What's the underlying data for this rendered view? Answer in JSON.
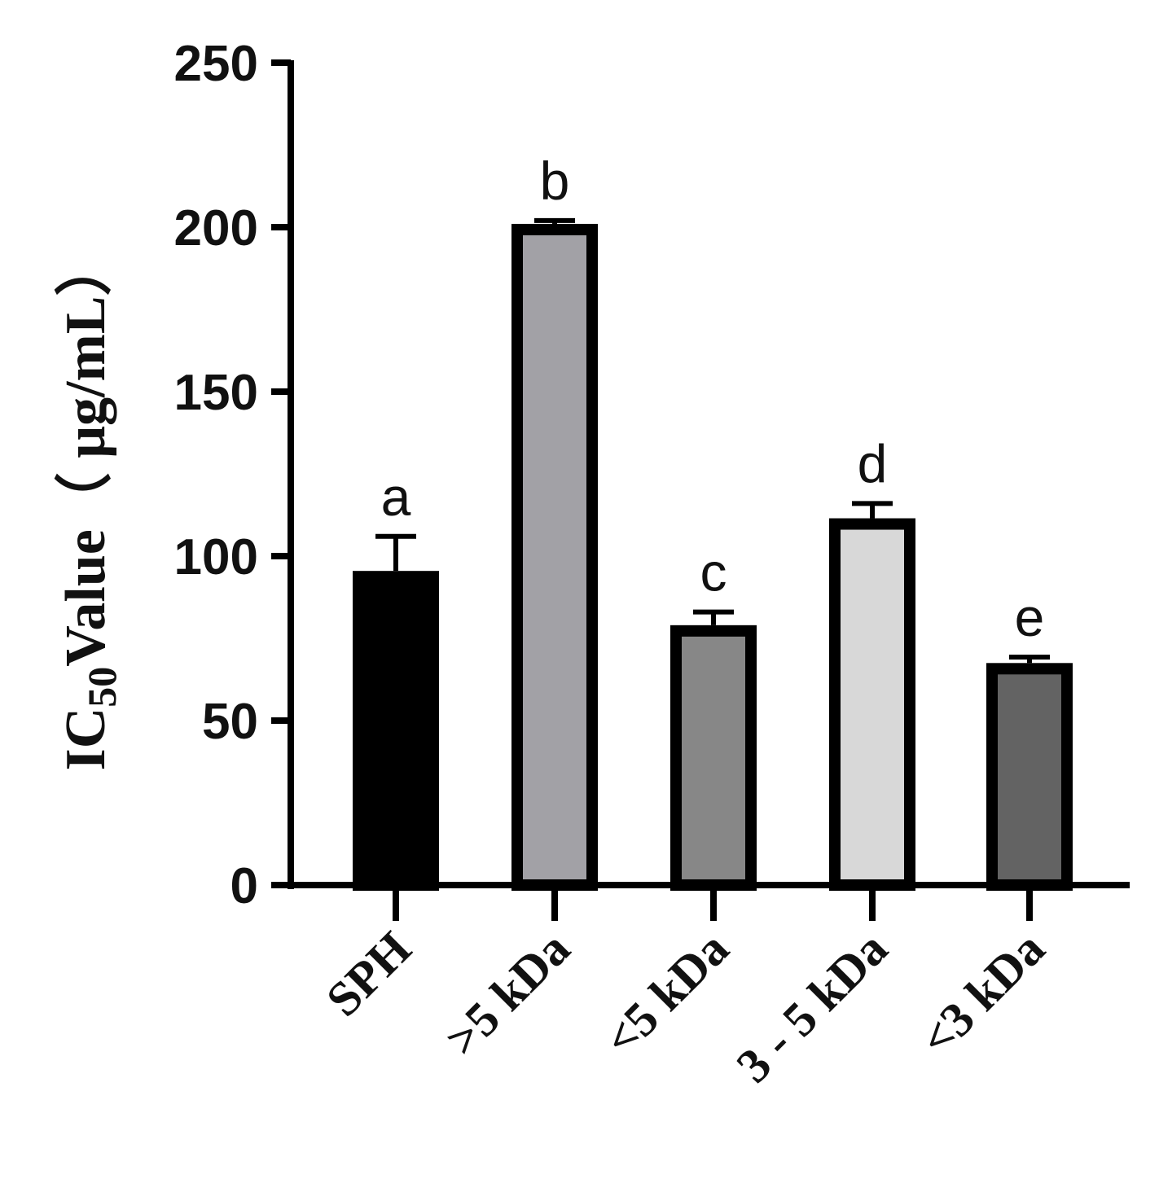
{
  "chart_data": {
    "type": "bar",
    "title": "",
    "categories": [
      "SPH",
      "˃5 kDa",
      "˂5 kDa",
      "3 - 5 kDa",
      "˂3 kDa"
    ],
    "values": [
      95.5,
      201.0,
      79.0,
      111.5,
      67.5
    ],
    "errors": [
      10.5,
      1.0,
      4.0,
      4.5,
      1.8
    ],
    "significance_letters": [
      "a",
      "b",
      "c",
      "d",
      "e"
    ],
    "bar_colors": [
      "#000000",
      "#a2a1a6",
      "#878787",
      "#d8d8d8",
      "#636363"
    ],
    "edge_color": "#000000",
    "ylabel": {
      "main": "IC",
      "subscript": "50",
      "rest": "Value（ μg/mL）"
    },
    "xlabel": "",
    "ylim": [
      0,
      250
    ],
    "yticks": [
      "0",
      "50",
      "100",
      "150",
      "200",
      "250"
    ],
    "grid": false,
    "legend": "none"
  }
}
